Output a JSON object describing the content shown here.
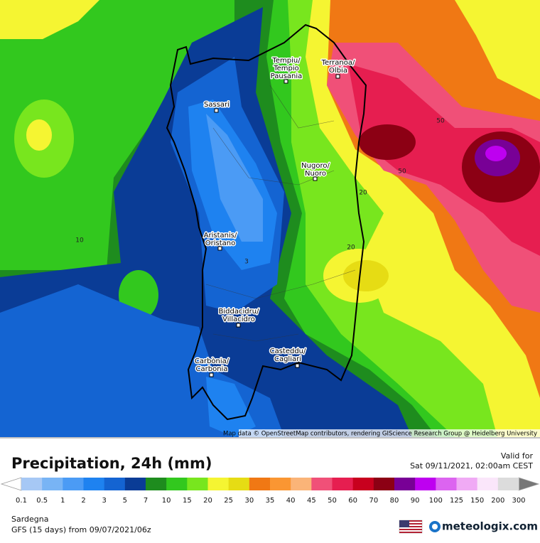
{
  "map": {
    "cities": [
      {
        "lines": [
          "Tempiu/",
          "Tempio",
          "Pausania"
        ]
      },
      {
        "lines": [
          "Terranoa/",
          "Olbia"
        ]
      },
      {
        "lines": [
          "Sassari"
        ]
      },
      {
        "lines": [
          "Nugoro/",
          "Nuoro"
        ]
      },
      {
        "lines": [
          "Aristanis/",
          "Oristano"
        ]
      },
      {
        "lines": [
          "Biddacidru/",
          "Villacidro"
        ]
      },
      {
        "lines": [
          "Casteddu/",
          "Cagliari"
        ]
      },
      {
        "lines": [
          "Carbònia/",
          "Carbonia"
        ]
      }
    ],
    "contour_labels": [
      "10",
      "50",
      "50",
      "20",
      "20",
      "3"
    ],
    "attribution": "Map data © OpenStreetMap contributors, rendering GIScience Research Group @ Heidelberg University"
  },
  "legend": {
    "title": "Precipitation, 24h (mm)",
    "valid_for": "Valid for",
    "valid_time": "Sat 09/11/2021, 02:00am CEST",
    "ticks": [
      "0.1",
      "0.5",
      "1",
      "2",
      "3",
      "5",
      "7",
      "10",
      "15",
      "20",
      "25",
      "30",
      "35",
      "40",
      "45",
      "50",
      "60",
      "70",
      "80",
      "90",
      "100",
      "125",
      "150",
      "200",
      "300"
    ],
    "colors": [
      "#a6c8f5",
      "#78b4f5",
      "#4b9bf5",
      "#1e82f0",
      "#1464d2",
      "#0a3c96",
      "#1e8c1e",
      "#32c81e",
      "#78e61e",
      "#f5f532",
      "#e6dc14",
      "#f07814",
      "#fa9632",
      "#fab478",
      "#f05078",
      "#e61e50",
      "#c8001e",
      "#8c0014",
      "#780096",
      "#be00f0",
      "#dc64f0",
      "#f0aaf5",
      "#fae6fa",
      "#dcdcdc"
    ],
    "region": "Sardegna",
    "model_run": "GFS (15 days) from  09/07/2021/06z",
    "brand": "meteologix.com"
  }
}
